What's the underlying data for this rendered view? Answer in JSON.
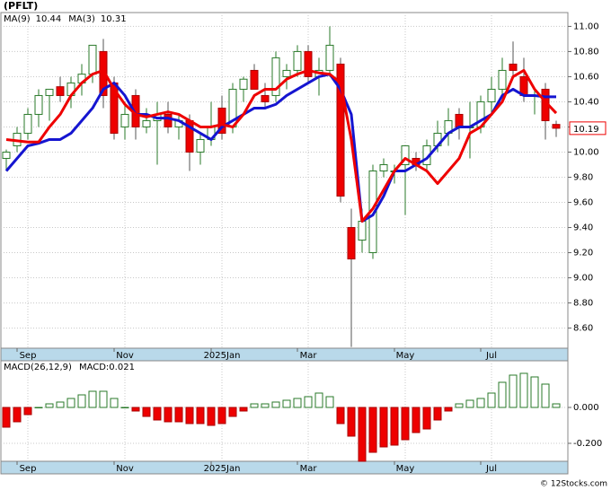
{
  "chart_data": [
    {
      "type": "candlestick",
      "title": "(PFLT)",
      "categories": [
        null,
        null,
        "Sep",
        null,
        null,
        null,
        null,
        null,
        null,
        null,
        null,
        "Nov",
        null,
        null,
        null,
        null,
        null,
        null,
        null,
        null,
        "2025Jan",
        null,
        null,
        null,
        null,
        null,
        null,
        null,
        "Mar",
        null,
        null,
        null,
        null,
        null,
        null,
        null,
        null,
        "May",
        null,
        null,
        null,
        null,
        null,
        null,
        null,
        "Jul",
        null,
        null,
        null,
        null,
        null,
        null
      ],
      "open": [
        9.95,
        10.05,
        10.15,
        10.3,
        10.45,
        10.52,
        10.45,
        10.55,
        10.62,
        10.8,
        10.55,
        10.2,
        10.45,
        10.2,
        10.25,
        10.3,
        10.2,
        10.25,
        10.0,
        10.1,
        10.35,
        10.2,
        10.5,
        10.65,
        10.45,
        10.45,
        10.6,
        10.65,
        10.8,
        10.6,
        10.65,
        10.7,
        9.4,
        9.3,
        9.2,
        9.85,
        9.85,
        9.9,
        9.95,
        9.9,
        10.05,
        10.15,
        10.3,
        10.2,
        10.2,
        10.4,
        10.5,
        10.7,
        10.6,
        10.45,
        10.5,
        10.22
      ],
      "high": [
        10.02,
        10.2,
        10.35,
        10.5,
        10.5,
        10.6,
        10.6,
        10.7,
        10.85,
        10.9,
        10.6,
        10.4,
        10.5,
        10.35,
        10.4,
        10.4,
        10.3,
        10.3,
        10.15,
        10.4,
        10.45,
        10.55,
        10.6,
        10.7,
        10.55,
        10.8,
        10.7,
        10.85,
        10.85,
        10.75,
        11.0,
        10.75,
        9.55,
        9.55,
        9.9,
        9.95,
        9.9,
        10.05,
        10.0,
        10.1,
        10.25,
        10.35,
        10.35,
        10.4,
        10.45,
        10.6,
        10.75,
        10.88,
        10.75,
        10.5,
        10.55,
        10.25
      ],
      "low": [
        9.85,
        10.0,
        10.1,
        10.2,
        10.25,
        10.4,
        10.35,
        10.45,
        10.55,
        10.35,
        10.1,
        10.1,
        10.1,
        10.15,
        9.9,
        10.15,
        10.1,
        9.85,
        9.9,
        10.05,
        10.1,
        10.15,
        10.4,
        10.5,
        10.35,
        10.4,
        10.5,
        10.6,
        10.55,
        10.45,
        10.6,
        9.6,
        8.45,
        9.2,
        9.15,
        9.8,
        9.75,
        9.5,
        9.85,
        9.85,
        10.0,
        10.05,
        10.1,
        9.95,
        10.15,
        10.3,
        10.45,
        10.6,
        10.4,
        10.3,
        10.1,
        10.12
      ],
      "close": [
        10.0,
        10.15,
        10.3,
        10.45,
        10.5,
        10.45,
        10.55,
        10.62,
        10.85,
        10.45,
        10.15,
        10.3,
        10.2,
        10.25,
        10.3,
        10.2,
        10.25,
        10.0,
        10.1,
        10.2,
        10.15,
        10.5,
        10.58,
        10.5,
        10.4,
        10.75,
        10.65,
        10.8,
        10.6,
        10.65,
        10.85,
        9.65,
        9.15,
        9.45,
        9.85,
        9.9,
        9.85,
        10.05,
        9.9,
        10.05,
        10.15,
        10.25,
        10.2,
        10.2,
        10.4,
        10.5,
        10.65,
        10.65,
        10.45,
        10.45,
        10.25,
        10.19
      ],
      "up_color": "#2a7a2a",
      "down_color": "#ee0000",
      "series": [
        {
          "name": "MA(9)",
          "color": "#1515d0",
          "values": [
            9.85,
            9.95,
            10.05,
            10.07,
            10.1,
            10.1,
            10.15,
            10.25,
            10.35,
            10.5,
            10.55,
            10.45,
            10.3,
            10.3,
            10.27,
            10.27,
            10.25,
            10.2,
            10.15,
            10.1,
            10.2,
            10.25,
            10.3,
            10.35,
            10.35,
            10.38,
            10.45,
            10.5,
            10.55,
            10.6,
            10.62,
            10.5,
            10.3,
            9.45,
            9.5,
            9.65,
            9.85,
            9.85,
            9.9,
            9.95,
            10.05,
            10.15,
            10.2,
            10.2,
            10.25,
            10.3,
            10.45,
            10.5,
            10.45,
            10.45,
            10.44,
            10.44
          ]
        },
        {
          "name": "MA(3)",
          "color": "#ee0000",
          "values": [
            10.1,
            10.09,
            10.08,
            10.08,
            10.2,
            10.3,
            10.45,
            10.55,
            10.62,
            10.65,
            10.5,
            10.38,
            10.3,
            10.28,
            10.3,
            10.32,
            10.3,
            10.25,
            10.2,
            10.2,
            10.22,
            10.2,
            10.3,
            10.45,
            10.5,
            10.5,
            10.58,
            10.62,
            10.65,
            10.63,
            10.62,
            10.55,
            10.1,
            9.45,
            9.55,
            9.7,
            9.85,
            9.95,
            9.9,
            9.85,
            9.75,
            9.85,
            9.95,
            10.15,
            10.2,
            10.3,
            10.4,
            10.6,
            10.65,
            10.5,
            10.4,
            10.31
          ]
        }
      ],
      "ylim": [
        8.44,
        11.11
      ],
      "yticks": [
        {
          "value": 8.6,
          "label": "8.60"
        },
        {
          "value": 8.8,
          "label": "8.80"
        },
        {
          "value": 9.0,
          "label": "9.00"
        },
        {
          "value": 9.2,
          "label": "9.20"
        },
        {
          "value": 9.4,
          "label": "9.40"
        },
        {
          "value": 9.6,
          "label": "9.60"
        },
        {
          "value": 9.8,
          "label": "9.80"
        },
        {
          "value": 10.0,
          "label": "10.00"
        },
        {
          "value": 10.2,
          "label": "10.20"
        },
        {
          "value": 10.4,
          "label": "10.40"
        },
        {
          "value": 10.6,
          "label": "10.60"
        },
        {
          "value": 10.8,
          "label": "10.80"
        },
        {
          "value": 11.0,
          "label": "11.00"
        }
      ],
      "grid": true
    },
    {
      "type": "bar",
      "name": "MACD(26,12,9)",
      "readout": "MACD:0.021",
      "categories": [
        null,
        null,
        "Sep",
        null,
        null,
        null,
        null,
        null,
        null,
        null,
        null,
        "Nov",
        null,
        null,
        null,
        null,
        null,
        null,
        null,
        null,
        "2025Jan",
        null,
        null,
        null,
        null,
        null,
        null,
        null,
        "Mar",
        null,
        null,
        null,
        null,
        null,
        null,
        null,
        null,
        "May",
        null,
        null,
        null,
        null,
        null,
        null,
        null,
        "Jul",
        null,
        null,
        null,
        null,
        null,
        null
      ],
      "values": [
        -0.11,
        -0.08,
        -0.04,
        0.0,
        0.02,
        0.03,
        0.05,
        0.07,
        0.09,
        0.09,
        0.05,
        0.0,
        -0.02,
        -0.05,
        -0.07,
        -0.08,
        -0.08,
        -0.09,
        -0.09,
        -0.1,
        -0.09,
        -0.05,
        -0.02,
        0.02,
        0.02,
        0.03,
        0.04,
        0.05,
        0.06,
        0.08,
        0.06,
        -0.09,
        -0.16,
        -0.3,
        -0.25,
        -0.22,
        -0.21,
        -0.18,
        -0.14,
        -0.12,
        -0.07,
        -0.02,
        0.02,
        0.04,
        0.05,
        0.08,
        0.14,
        0.18,
        0.19,
        0.17,
        0.13,
        0.02
      ],
      "pos_color": "#2a7a2a",
      "neg_color": "#ee0000",
      "ylim": [
        -0.3,
        0.26
      ],
      "yticks": [
        {
          "value": 0.0,
          "label": "0.000"
        },
        {
          "value": -0.2,
          "label": "-0.200"
        }
      ],
      "grid": true
    }
  ],
  "footer": "© 12Stocks.com"
}
